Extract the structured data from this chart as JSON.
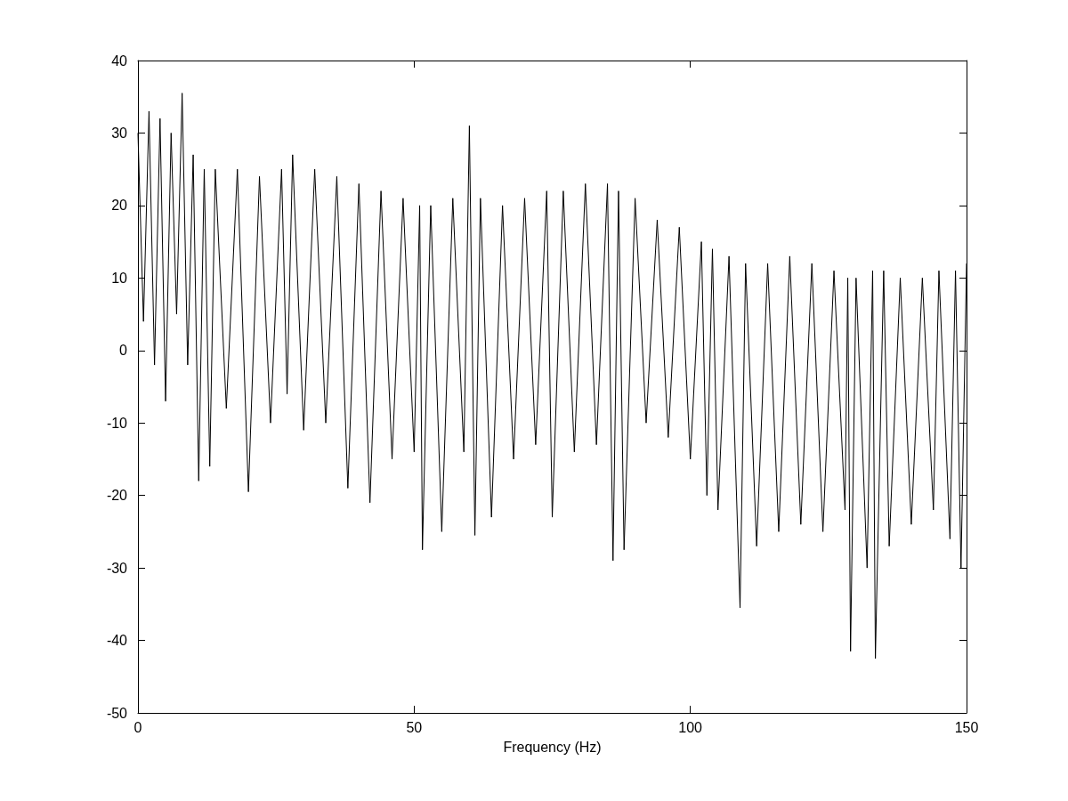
{
  "chart_data": {
    "type": "line",
    "xlabel": "Frequency (Hz)",
    "x": [
      0,
      1,
      2,
      3,
      4,
      5,
      6,
      7,
      8,
      9,
      10,
      11,
      12,
      13,
      14,
      16,
      18,
      20,
      22,
      24,
      26,
      27,
      28,
      30,
      32,
      34,
      36,
      38,
      40,
      42,
      44,
      46,
      48,
      50,
      51,
      51.5,
      53,
      55,
      57,
      59,
      60,
      61,
      62,
      64,
      66,
      68,
      70,
      72,
      74,
      75,
      77,
      79,
      81,
      83,
      85,
      86,
      87,
      88,
      90,
      92,
      94,
      96,
      98,
      100,
      102,
      103,
      104,
      105,
      107,
      109,
      110,
      112,
      114,
      116,
      118,
      120,
      122,
      124,
      126,
      128,
      128.5,
      129,
      130,
      132,
      133,
      133.5,
      135,
      136,
      138,
      140,
      142,
      144,
      145,
      147,
      148,
      149,
      150
    ],
    "series": [
      {
        "color": "#000000",
        "values": [
          30,
          4,
          33,
          -2,
          32,
          -7,
          30,
          5,
          35.5,
          -2,
          27,
          -18,
          25,
          -16,
          25,
          -8,
          25,
          -19.5,
          24,
          -10,
          25,
          -6,
          27,
          -11,
          25,
          -10,
          24,
          -19,
          23,
          -21,
          22,
          -15,
          21,
          -14,
          20,
          -27.5,
          20,
          -25,
          21,
          -14,
          31,
          -25.5,
          21,
          -23,
          20,
          -15,
          21,
          -13,
          22,
          -23,
          22,
          -14,
          23,
          -13,
          23,
          -29,
          22,
          -27.5,
          21,
          -10,
          18,
          -12,
          17,
          -15,
          15,
          -20,
          14,
          -22,
          13,
          -35.5,
          12,
          -27,
          12,
          -25,
          13,
          -24,
          12,
          -25,
          11,
          -22,
          10,
          -41.5,
          10,
          -30,
          11,
          -42.5,
          11,
          -27,
          10,
          -24,
          10,
          -22,
          11,
          -26,
          11,
          -30,
          12
        ]
      }
    ],
    "xlim": [
      0,
      150
    ],
    "xticks": [
      0,
      50,
      100,
      150
    ],
    "ylim": [
      -50,
      40
    ],
    "yticks": [
      -50,
      -40,
      -30,
      -20,
      -10,
      0,
      10,
      20,
      30,
      40
    ],
    "grid": false,
    "marker": "none",
    "line_style": "solid"
  }
}
